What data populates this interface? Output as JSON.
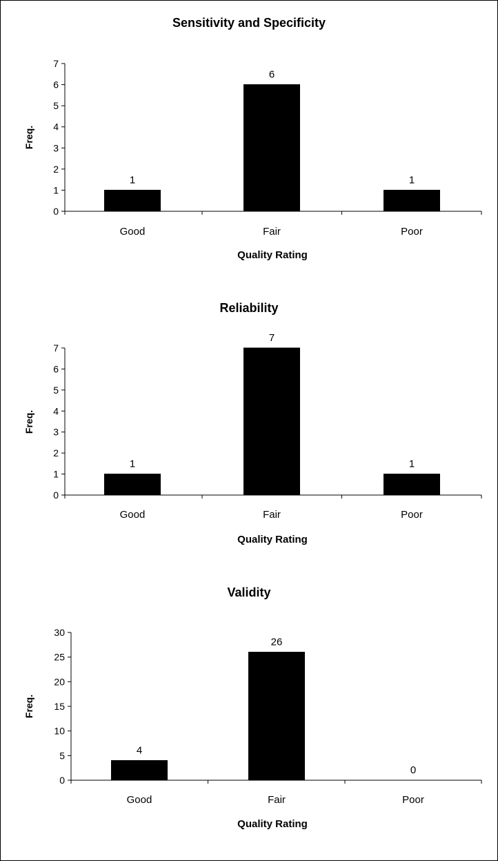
{
  "chart_data": [
    {
      "type": "bar",
      "title": "Sensitivity and Specificity",
      "xlabel": "Quality Rating",
      "ylabel": "Freq.",
      "categories": [
        "Good",
        "Fair",
        "Poor"
      ],
      "values": [
        1,
        6,
        1
      ],
      "data_labels": [
        "1",
        "6",
        "1"
      ],
      "ylim": [
        0,
        7
      ],
      "yticks": [
        "0",
        "1",
        "2",
        "3",
        "4",
        "5",
        "6",
        "7"
      ],
      "grid": false,
      "bar_color": "#000000"
    },
    {
      "type": "bar",
      "title": "Reliability",
      "xlabel": "Quality Rating",
      "ylabel": "Freq.",
      "categories": [
        "Good",
        "Fair",
        "Poor"
      ],
      "values": [
        1,
        7,
        1
      ],
      "data_labels": [
        "1",
        "7",
        "1"
      ],
      "ylim": [
        0,
        7
      ],
      "yticks": [
        "0",
        "1",
        "2",
        "3",
        "4",
        "5",
        "6",
        "7"
      ],
      "grid": false,
      "bar_color": "#000000"
    },
    {
      "type": "bar",
      "title": "Validity",
      "xlabel": "Quality Rating",
      "ylabel": "Freq.",
      "categories": [
        "Good",
        "Fair",
        "Poor"
      ],
      "values": [
        4,
        26,
        0
      ],
      "data_labels": [
        "4",
        "26",
        "0"
      ],
      "ylim": [
        0,
        30
      ],
      "yticks": [
        "0",
        "5",
        "10",
        "15",
        "20",
        "25",
        "30"
      ],
      "grid": false,
      "bar_color": "#000000"
    }
  ]
}
